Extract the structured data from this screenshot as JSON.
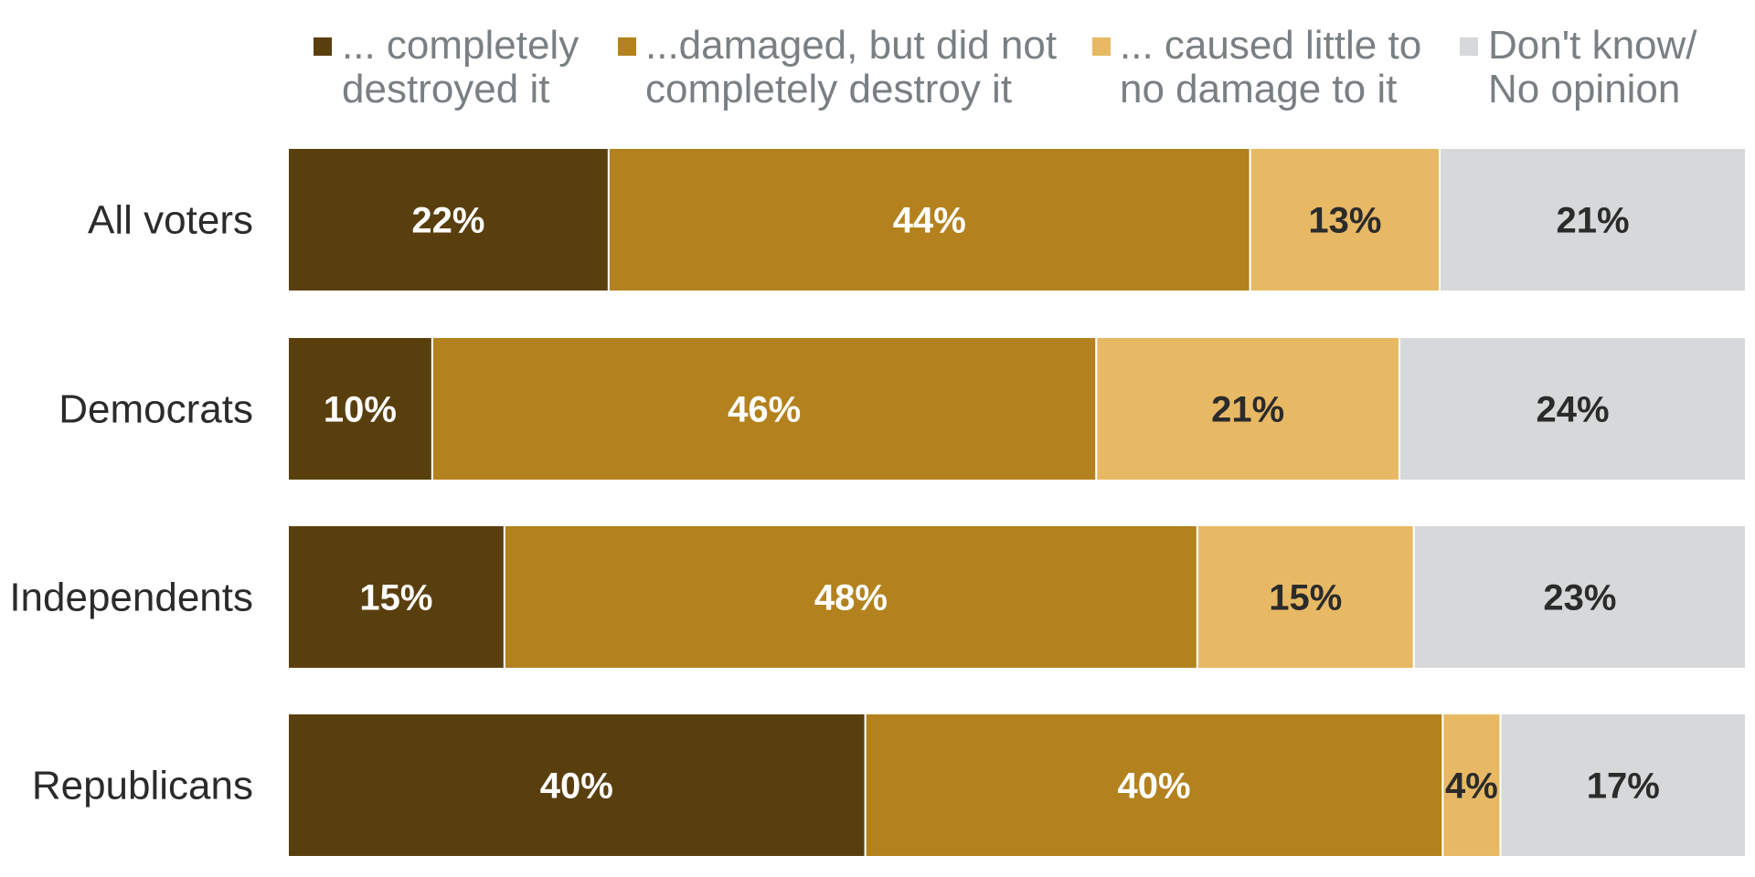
{
  "chart_data": {
    "type": "bar",
    "orientation": "horizontal",
    "stacked": true,
    "categories": [
      "All voters",
      "Democrats",
      "Independents",
      "Republicans"
    ],
    "series": [
      {
        "name": "... completely destroyed it",
        "legend_lines": [
          "... completely",
          "destroyed it"
        ],
        "values": [
          22,
          10,
          15,
          40
        ],
        "labels": [
          "22%",
          "10%",
          "15%",
          "40%"
        ],
        "color": "#5a3f0e",
        "label_color": "#ffffff"
      },
      {
        "name": "...damaged, but did not completely destroy it",
        "legend_lines": [
          "...damaged, but did not",
          "completely destroy it"
        ],
        "values": [
          44,
          46,
          48,
          40
        ],
        "labels": [
          "44%",
          "46%",
          "48%",
          "40%"
        ],
        "color": "#b3821e",
        "label_color": "#ffffff"
      },
      {
        "name": "... caused little to no damage to it",
        "legend_lines": [
          "... caused little to",
          "no damage to it"
        ],
        "values": [
          13,
          21,
          15,
          4
        ],
        "labels": [
          "13%",
          "21%",
          "15%",
          "4%"
        ],
        "color": "#e8b964",
        "label_color": "#2b2b2b"
      },
      {
        "name": "Don't know/ No opinion",
        "legend_lines": [
          "Don't know/",
          "No opinion"
        ],
        "values": [
          21,
          24,
          23,
          17
        ],
        "labels": [
          "21%",
          "24%",
          "23%",
          "17%"
        ],
        "color": "#d6d8d9",
        "label_color": "#2b2b2b"
      }
    ],
    "xlim": [
      0,
      100
    ],
    "legend_position": "top",
    "grid": false
  }
}
